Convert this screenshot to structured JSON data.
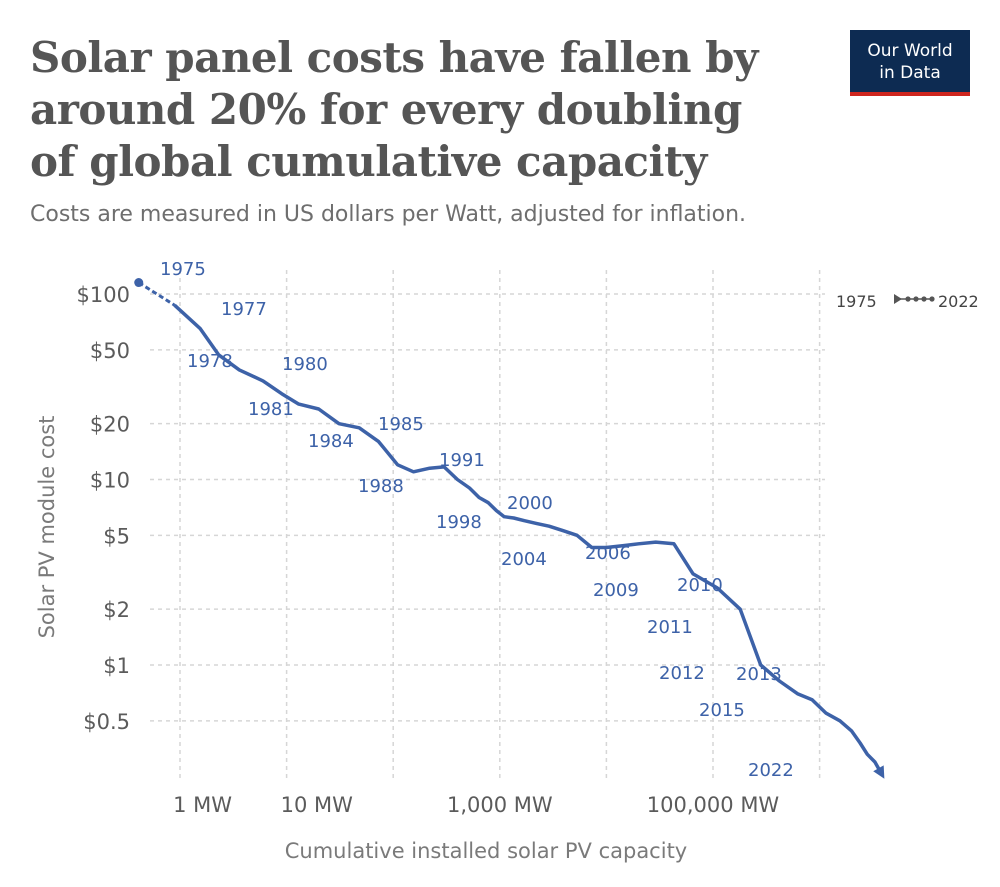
{
  "branding": {
    "line1": "Our World",
    "line2": "in Data"
  },
  "chart_data": {
    "type": "line",
    "title": "Solar panel costs have fallen by around 20% for every doubling of global cumulative capacity",
    "subtitle": "Costs are measured in US dollars per Watt, adjusted for inflation.",
    "xlabel": "Cumulative installed solar PV capacity",
    "ylabel": "Solar PV module cost",
    "x_scale": "log",
    "y_scale": "log",
    "xlim": [
      0.2,
      2000000
    ],
    "ylim": [
      0.23,
      140
    ],
    "x_ticks": [
      1,
      10,
      1000,
      100000
    ],
    "x_tick_labels": [
      "1 MW",
      "10 MW",
      "1,000 MW",
      "100,000 MW"
    ],
    "y_ticks": [
      100,
      50,
      20,
      10,
      5,
      2,
      1,
      0.5
    ],
    "y_tick_labels": [
      "$100",
      "$50",
      "$20",
      "$10",
      "$5",
      "$2",
      "$1",
      "$0.5"
    ],
    "legend": {
      "start": "1975",
      "end": "2022"
    },
    "color": "#3d62a8",
    "series": [
      {
        "name": "Solar PV module cost",
        "points": [
          {
            "year": 1975,
            "x": 0.41,
            "y": 115.3
          },
          {
            "year": 1976,
            "x": 0.89,
            "y": 87.0
          },
          {
            "year": 1977,
            "x": 1.55,
            "y": 65.0
          },
          {
            "year": 1978,
            "x": 2.3,
            "y": 47.0
          },
          {
            "year": 1979,
            "x": 3.6,
            "y": 39.0
          },
          {
            "year": 1980,
            "x": 6.0,
            "y": 34.0
          },
          {
            "year": 1981,
            "x": 9.0,
            "y": 29.0
          },
          {
            "year": 1982,
            "x": 13.0,
            "y": 25.5
          },
          {
            "year": 1983,
            "x": 20.0,
            "y": 24.0
          },
          {
            "year": 1984,
            "x": 31.0,
            "y": 20.0
          },
          {
            "year": 1985,
            "x": 48.0,
            "y": 19.0
          },
          {
            "year": 1986,
            "x": 73.0,
            "y": 16.0
          },
          {
            "year": 1987,
            "x": 110.0,
            "y": 12.0
          },
          {
            "year": 1988,
            "x": 155.0,
            "y": 11.0
          },
          {
            "year": 1989,
            "x": 220.0,
            "y": 11.5
          },
          {
            "year": 1990,
            "x": 300.0,
            "y": 11.7
          },
          {
            "year": 1991,
            "x": 400.0,
            "y": 10.0
          },
          {
            "year": 1992,
            "x": 520.0,
            "y": 9.0
          },
          {
            "year": 1993,
            "x": 640.0,
            "y": 8.0
          },
          {
            "year": 1994,
            "x": 780.0,
            "y": 7.5
          },
          {
            "year": 1995,
            "x": 930.0,
            "y": 6.8
          },
          {
            "year": 1996,
            "x": 1100.0,
            "y": 6.3
          },
          {
            "year": 1997,
            "x": 1350.0,
            "y": 6.2
          },
          {
            "year": 1998,
            "x": 1700.0,
            "y": 6.0
          },
          {
            "year": 1999,
            "x": 2200.0,
            "y": 5.8
          },
          {
            "year": 2000,
            "x": 2900.0,
            "y": 5.6
          },
          {
            "year": 2001,
            "x": 3900.0,
            "y": 5.3
          },
          {
            "year": 2002,
            "x": 5300.0,
            "y": 5.0
          },
          {
            "year": 2003,
            "x": 7300.0,
            "y": 4.3
          },
          {
            "year": 2004,
            "x": 10000.0,
            "y": 4.3
          },
          {
            "year": 2005,
            "x": 14500.0,
            "y": 4.4
          },
          {
            "year": 2006,
            "x": 20000.0,
            "y": 4.5
          },
          {
            "year": 2007,
            "x": 29000.0,
            "y": 4.6
          },
          {
            "year": 2008,
            "x": 43000.0,
            "y": 4.5
          },
          {
            "year": 2009,
            "x": 65000.0,
            "y": 3.1
          },
          {
            "year": 2010,
            "x": 110000.0,
            "y": 2.6
          },
          {
            "year": 2011,
            "x": 180000.0,
            "y": 2.0
          },
          {
            "year": 2012,
            "x": 280000.0,
            "y": 1.0
          },
          {
            "year": 2013,
            "x": 420000.0,
            "y": 0.82
          },
          {
            "year": 2014,
            "x": 620000.0,
            "y": 0.7
          },
          {
            "year": 2015,
            "x": 850000.0,
            "y": 0.65
          },
          {
            "year": 2016,
            "x": 1150000.0,
            "y": 0.55
          },
          {
            "year": 2017,
            "x": 1550000.0,
            "y": 0.5
          },
          {
            "year": 2018,
            "x": 2000000.0,
            "y": 0.44
          },
          {
            "year": 2019,
            "x": 2400000.0,
            "y": 0.38
          },
          {
            "year": 2020,
            "x": 2800000.0,
            "y": 0.33
          },
          {
            "year": 2021,
            "x": 3300000.0,
            "y": 0.3
          },
          {
            "year": 2022,
            "x": 3800000.0,
            "y": 0.26
          }
        ]
      }
    ],
    "point_labels": [
      "1975",
      "1977",
      "1978",
      "1980",
      "1981",
      "1984",
      "1985",
      "1988",
      "1991",
      "1998",
      "2000",
      "2004",
      "2006",
      "2009",
      "2010",
      "2011",
      "2012",
      "2013",
      "2015",
      "2022"
    ]
  }
}
